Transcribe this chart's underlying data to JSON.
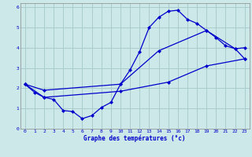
{
  "xlabel": "Graphe des températures (°c)",
  "bg_color": "#cce8e8",
  "grid_color": "#aacccc",
  "line_color": "#0000cc",
  "xlim": [
    -0.5,
    23.5
  ],
  "ylim": [
    0,
    6.2
  ],
  "xticks": [
    0,
    1,
    2,
    3,
    4,
    5,
    6,
    7,
    8,
    9,
    10,
    11,
    12,
    13,
    14,
    15,
    16,
    17,
    18,
    19,
    20,
    21,
    22,
    23
  ],
  "yticks": [
    0,
    1,
    2,
    3,
    4,
    5,
    6
  ],
  "line1_x": [
    0,
    1,
    2,
    3,
    4,
    5,
    6,
    7,
    8,
    9,
    10,
    11,
    12,
    13,
    14,
    15,
    16,
    17,
    18,
    19,
    20,
    21,
    22,
    23
  ],
  "line1_y": [
    2.2,
    1.8,
    1.55,
    1.45,
    0.9,
    0.85,
    0.5,
    0.65,
    1.05,
    1.3,
    2.2,
    2.9,
    3.8,
    5.0,
    5.5,
    5.8,
    5.85,
    5.4,
    5.2,
    4.85,
    4.5,
    4.1,
    3.95,
    4.0
  ],
  "line2_x": [
    0,
    2,
    10,
    14,
    19,
    22,
    23
  ],
  "line2_y": [
    2.2,
    1.9,
    2.2,
    3.85,
    4.85,
    3.95,
    3.45
  ],
  "line3_x": [
    0,
    2,
    10,
    15,
    19,
    23
  ],
  "line3_y": [
    2.2,
    1.55,
    1.85,
    2.3,
    3.1,
    3.45
  ]
}
